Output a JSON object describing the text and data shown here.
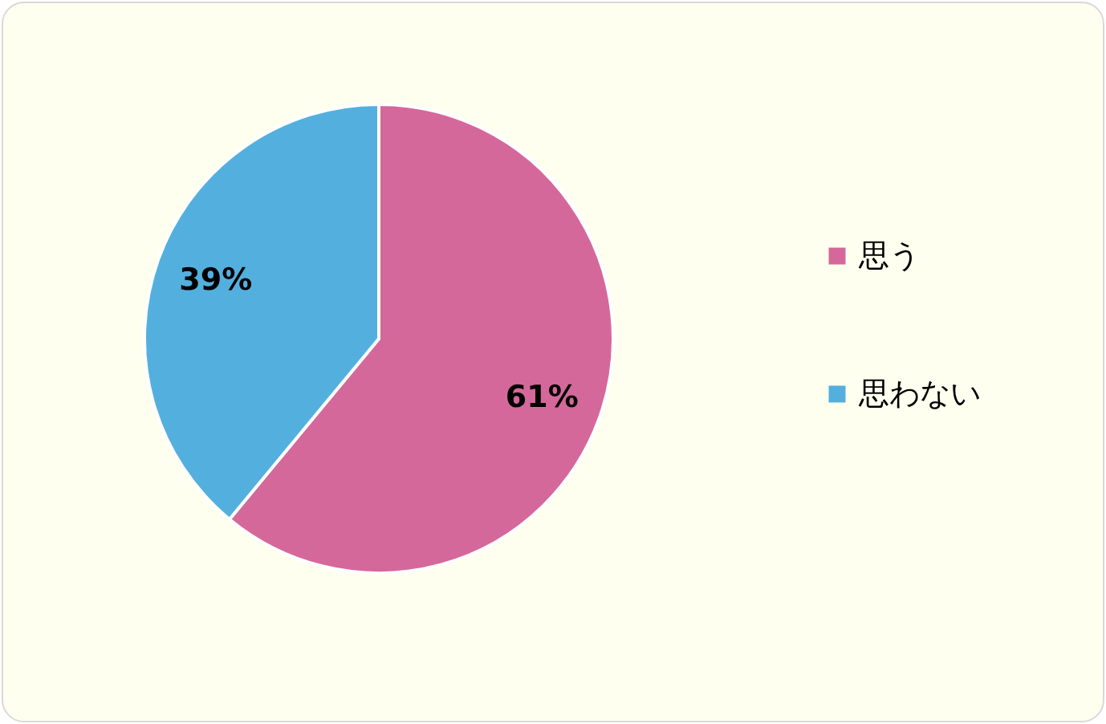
{
  "chart_data": {
    "type": "pie",
    "categories": [
      "思う",
      "思わない"
    ],
    "values": [
      61,
      39
    ],
    "colors": [
      "#d5689a",
      "#53b0de"
    ],
    "value_labels": [
      "61%",
      "39%"
    ],
    "legend": "right"
  }
}
